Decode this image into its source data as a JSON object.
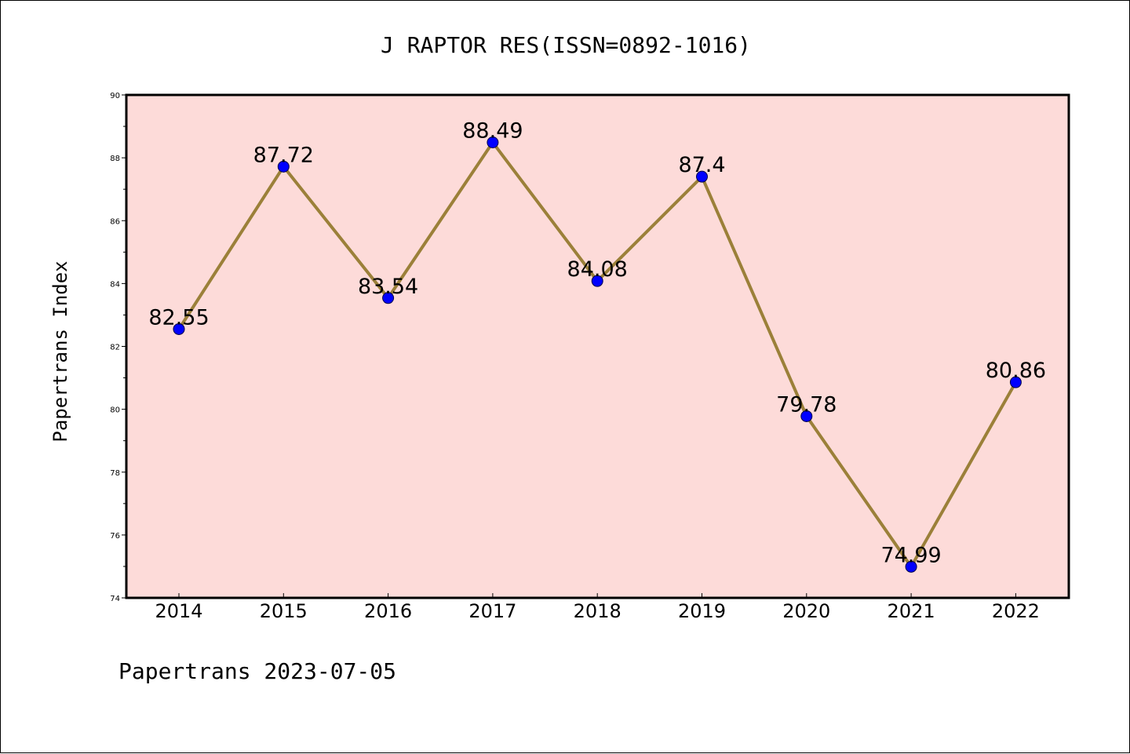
{
  "chart_data": {
    "type": "line",
    "title": "J RAPTOR RES(ISSN=0892-1016)",
    "xlabel": "",
    "ylabel": "Papertrans Index",
    "categories": [
      "2014",
      "2015",
      "2016",
      "2017",
      "2018",
      "2019",
      "2020",
      "2021",
      "2022"
    ],
    "series": [
      {
        "values": [
          82.55,
          87.72,
          83.54,
          88.49,
          84.08,
          87.4,
          79.78,
          74.99,
          80.86
        ],
        "data_labels": [
          "82.55",
          "87.72",
          "83.54",
          "88.49",
          "84.08",
          "87.4",
          "79.78",
          "74.99",
          "80.86"
        ]
      }
    ],
    "ylim": [
      74,
      90
    ],
    "yticks": [
      "74",
      "76",
      "78",
      "80",
      "82",
      "84",
      "86",
      "88",
      "90"
    ],
    "grid": false,
    "legend": "none",
    "colors": {
      "plot_background": "#fddbd9",
      "line": "#9b8039",
      "marker_fill": "#0000ff",
      "marker_edge": "#00004a",
      "axes": "#000000"
    }
  },
  "footer": {
    "text": "Papertrans 2023-07-05"
  }
}
